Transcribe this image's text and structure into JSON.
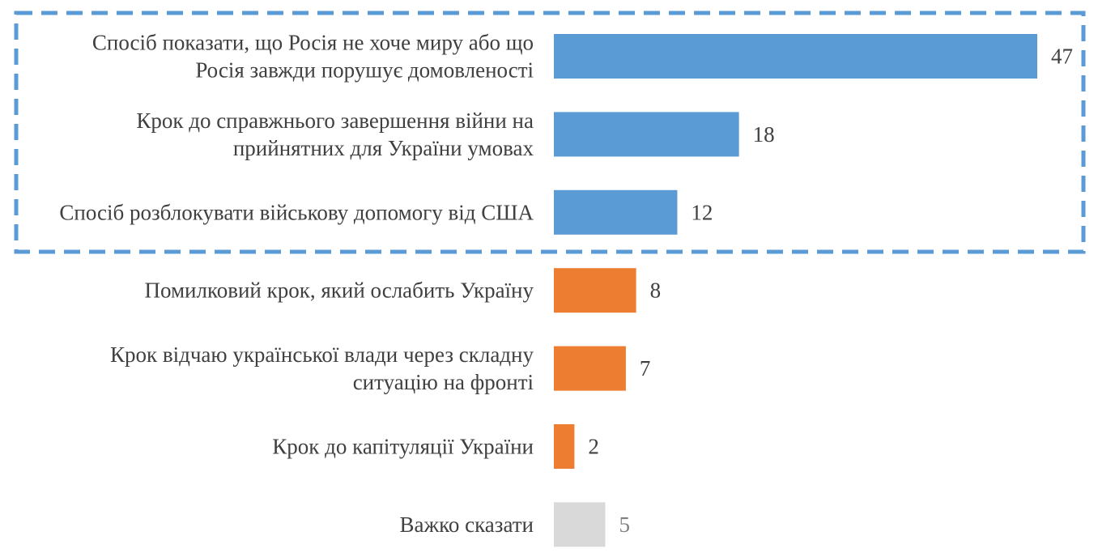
{
  "chart_data": {
    "type": "bar",
    "orientation": "horizontal",
    "categories": [
      [
        "Спосіб показати, що Росія не хоче миру або що",
        "Росія завжди порушує домовленості"
      ],
      [
        "Крок до справжнього завершення війни на",
        "прийнятних для України умовах"
      ],
      [
        "Спосіб розблокувати військову допомогу від США"
      ],
      [
        "Помилковий крок, який ослабить Україну"
      ],
      [
        "Крок відчаю української влади через складну",
        "ситуацію на фронті"
      ],
      [
        "Крок до капітуляції України"
      ],
      [
        "Важко сказати"
      ]
    ],
    "values": [
      47,
      18,
      12,
      8,
      7,
      2,
      5
    ],
    "value_labels": [
      "47",
      "18",
      "12",
      "8",
      "7",
      "2",
      "5"
    ],
    "bar_colors": [
      "#5b9bd5",
      "#5b9bd5",
      "#5b9bd5",
      "#ed7d31",
      "#ed7d31",
      "#ed7d31",
      "#d9d9d9"
    ],
    "value_label_colors": [
      "#404040",
      "#404040",
      "#404040",
      "#404040",
      "#404040",
      "#404040",
      "#7f7f7f"
    ],
    "label_color": "#404040",
    "xlim": [
      0,
      47
    ],
    "grid": false,
    "legend": "none",
    "highlight_box": {
      "covers_categories": [
        0,
        1,
        2
      ],
      "style": "dashed",
      "color": "#5b9bd5"
    },
    "title": "",
    "xlabel": "",
    "ylabel": ""
  }
}
